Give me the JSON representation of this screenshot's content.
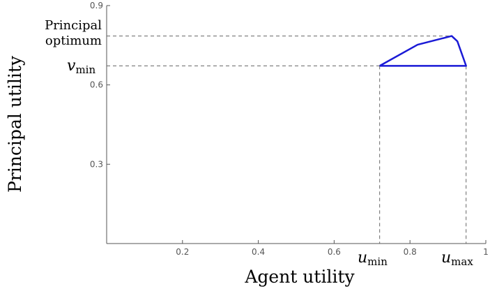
{
  "chart_data": {
    "type": "line",
    "title": "",
    "xlabel": "Agent utility",
    "ylabel": "Principal utility",
    "xlim": [
      0,
      1
    ],
    "ylim": [
      0,
      0.9
    ],
    "x_ticks": [
      0.2,
      0.4,
      0.6,
      0.8,
      1
    ],
    "x_tick_labels": [
      "0.2",
      "0.4",
      "0.6",
      "0.8",
      "1"
    ],
    "y_ticks": [
      0.3,
      0.6,
      0.9
    ],
    "y_tick_labels": [
      "0.3",
      "0.6",
      "0.9"
    ],
    "grid": false,
    "line_color": "#1a1ad6",
    "guide_color": "#666666",
    "series": [
      {
        "x": [
          0.72,
          0.82,
          0.91,
          0.925,
          0.948,
          0.72
        ],
        "y": [
          0.672,
          0.752,
          0.785,
          0.765,
          0.672,
          0.672
        ]
      }
    ],
    "annotations": {
      "principal_optimum": {
        "text": "Principal optimum",
        "line1": "Principal",
        "line2": "optimum",
        "y": 0.785
      },
      "v_min": {
        "symbol": "v",
        "subscript": "min",
        "y": 0.672
      },
      "u_min": {
        "symbol": "u",
        "subscript": "min",
        "x": 0.72
      },
      "u_max": {
        "symbol": "u",
        "subscript": "max",
        "x": 0.948
      }
    }
  }
}
